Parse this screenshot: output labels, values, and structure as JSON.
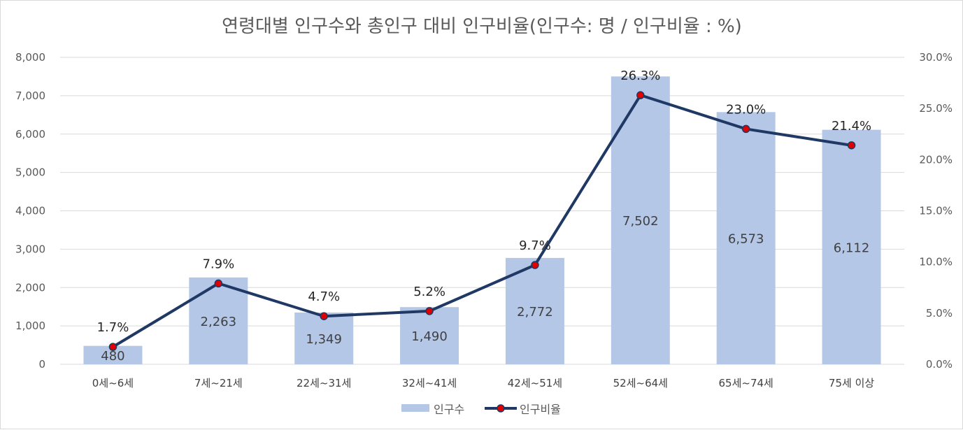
{
  "chart_data": {
    "type": "bar",
    "title": "연령대별 인구수와 총인구 대비 인구비율(인구수: 명 / 인구비율 : %)",
    "categories": [
      "0세~6세",
      "7세~21세",
      "22세~31세",
      "32세~41세",
      "42세~51세",
      "52세~64세",
      "65세~74세",
      "75세 이상"
    ],
    "series": [
      {
        "name": "인구수",
        "type": "bar",
        "axis": "left",
        "color": "#b4c7e7",
        "values": [
          480,
          2263,
          1349,
          1490,
          2772,
          7502,
          6573,
          6112
        ],
        "labels": [
          "480",
          "2,263",
          "1,349",
          "1,490",
          "2,772",
          "7,502",
          "6,573",
          "6,112"
        ]
      },
      {
        "name": "인구비율",
        "type": "line",
        "axis": "right",
        "color": "#1f3864",
        "marker_color": "#e00000",
        "values": [
          1.7,
          7.9,
          4.7,
          5.2,
          9.7,
          26.3,
          23.0,
          21.4
        ],
        "labels": [
          "1.7%",
          "7.9%",
          "4.7%",
          "5.2%",
          "9.7%",
          "26.3%",
          "23.0%",
          "21.4%"
        ]
      }
    ],
    "y_left": {
      "ylim": [
        0,
        8000
      ],
      "ticks": [
        "0",
        "1,000",
        "2,000",
        "3,000",
        "4,000",
        "5,000",
        "6,000",
        "7,000",
        "8,000"
      ]
    },
    "y_right": {
      "ylim": [
        0,
        30
      ],
      "ticks": [
        "0.0%",
        "5.0%",
        "10.0%",
        "15.0%",
        "20.0%",
        "25.0%",
        "30.0%"
      ]
    },
    "grid": true,
    "legend": "bottom"
  }
}
